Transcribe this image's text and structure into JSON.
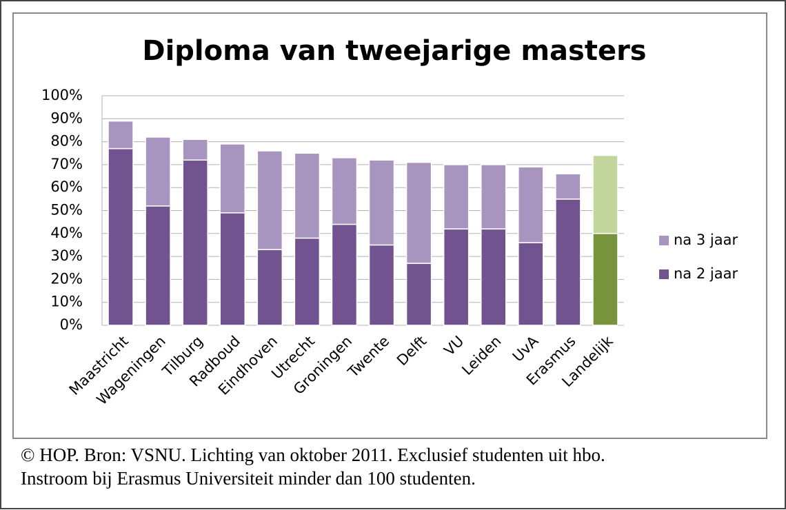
{
  "chart_data": {
    "type": "stacked_bar",
    "title": "Diploma van tweejarige masters",
    "categories": [
      "Maastricht",
      "Wageningen",
      "Tilburg",
      "Radboud",
      "Eindhoven",
      "Utrecht",
      "Groningen",
      "Twente",
      "Delft",
      "VU",
      "Leiden",
      "UvA",
      "Erasmus",
      "Landelijk"
    ],
    "series": [
      {
        "name": "na 2 jaar",
        "color": "#70538f",
        "colors": [
          "#70538f",
          "#70538f",
          "#70538f",
          "#70538f",
          "#70538f",
          "#70538f",
          "#70538f",
          "#70538f",
          "#70538f",
          "#70538f",
          "#70538f",
          "#70538f",
          "#70538f",
          "#77933c"
        ],
        "values": [
          77,
          52,
          72,
          49,
          33,
          38,
          44,
          35,
          27,
          42,
          42,
          36,
          55,
          40
        ]
      },
      {
        "name": "na 3 jaar",
        "color": "#a795c0",
        "colors": [
          "#a795c0",
          "#a795c0",
          "#a795c0",
          "#a795c0",
          "#a795c0",
          "#a795c0",
          "#a795c0",
          "#a795c0",
          "#a795c0",
          "#a795c0",
          "#a795c0",
          "#a795c0",
          "#a795c0",
          "#c3d69b"
        ],
        "values": [
          12,
          30,
          9,
          30,
          43,
          37,
          29,
          37,
          44,
          28,
          28,
          33,
          11,
          34
        ]
      }
    ],
    "ylim": [
      0,
      100
    ],
    "yticks": [
      {
        "value": 0,
        "label": "0%"
      },
      {
        "value": 10,
        "label": "10%"
      },
      {
        "value": 20,
        "label": "20%"
      },
      {
        "value": 30,
        "label": "30%"
      },
      {
        "value": 40,
        "label": "40%"
      },
      {
        "value": 50,
        "label": "50%"
      },
      {
        "value": 60,
        "label": "60%"
      },
      {
        "value": 70,
        "label": "70%"
      },
      {
        "value": 80,
        "label": "80%"
      },
      {
        "value": 90,
        "label": "90%"
      },
      {
        "value": 100,
        "label": "100%"
      }
    ],
    "grid": true,
    "legend": "right",
    "notes": [
      "© HOP. Bron: VSNU. Lichting van oktober 2011. Exclusief studenten uit hbo.",
      "Instroom bij Erasmus Universiteit minder dan 100 studenten."
    ]
  }
}
